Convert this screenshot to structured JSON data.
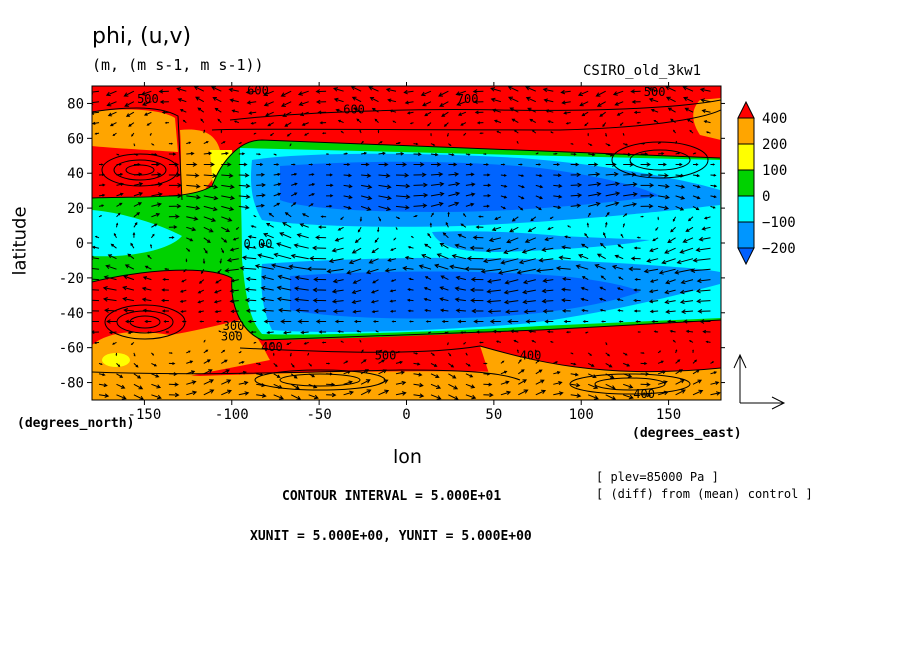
{
  "chart_data": {
    "type": "heatmap",
    "title": "phi, (u,v)",
    "units": "(m, (m s-1, m s-1))",
    "model": "CSIRO_old_3kw1",
    "xlabel": "lon",
    "ylabel": "latitude",
    "x_unit_label": "(degrees_east)",
    "y_unit_label": "(degrees_north)",
    "xlim": [
      -180,
      180
    ],
    "ylim": [
      -90,
      90
    ],
    "x_ticks": [
      -150,
      -100,
      -50,
      0,
      50,
      100,
      150
    ],
    "y_ticks": [
      -80,
      -60,
      -40,
      -20,
      0,
      20,
      40,
      60,
      80
    ],
    "colorbar": {
      "labels": [
        "400",
        "200",
        "100",
        "0",
        "−100",
        "−200"
      ],
      "colors": [
        "#ff0000",
        "#ffa500",
        "#ffff00",
        "#00d200",
        "#00ffff",
        "#0096ff",
        "#0060ff"
      ]
    },
    "contour_labels": [
      {
        "text": "500",
        "lon": -148,
        "lat": 83
      },
      {
        "text": "600",
        "lon": -85,
        "lat": 88
      },
      {
        "text": "600",
        "lon": -30,
        "lat": 77
      },
      {
        "text": "700",
        "lon": 35,
        "lat": 83
      },
      {
        "text": "500",
        "lon": 142,
        "lat": 87
      },
      {
        "text": "300",
        "lon": -100,
        "lat": -53
      },
      {
        "text": "400",
        "lon": -77,
        "lat": -59
      },
      {
        "text": "500",
        "lon": -12,
        "lat": -64
      },
      {
        "text": "400",
        "lon": 71,
        "lat": -64
      },
      {
        "text": "400",
        "lon": 136,
        "lat": -86
      },
      {
        "text": "0.00",
        "lon": -85,
        "lat": 0
      },
      {
        "text": "300",
        "lon": -99,
        "lat": -47
      }
    ],
    "vector_reference": {
      "xunit": 5.0,
      "yunit": 5.0
    }
  },
  "footer": {
    "plev": "[ plev=85000 Pa ]",
    "diff": "[ (diff) from (mean) control ]",
    "contour_interval": "CONTOUR INTERVAL = 5.000E+01",
    "xyunit": "XUNIT = 5.000E+00, YUNIT = 5.000E+00"
  }
}
